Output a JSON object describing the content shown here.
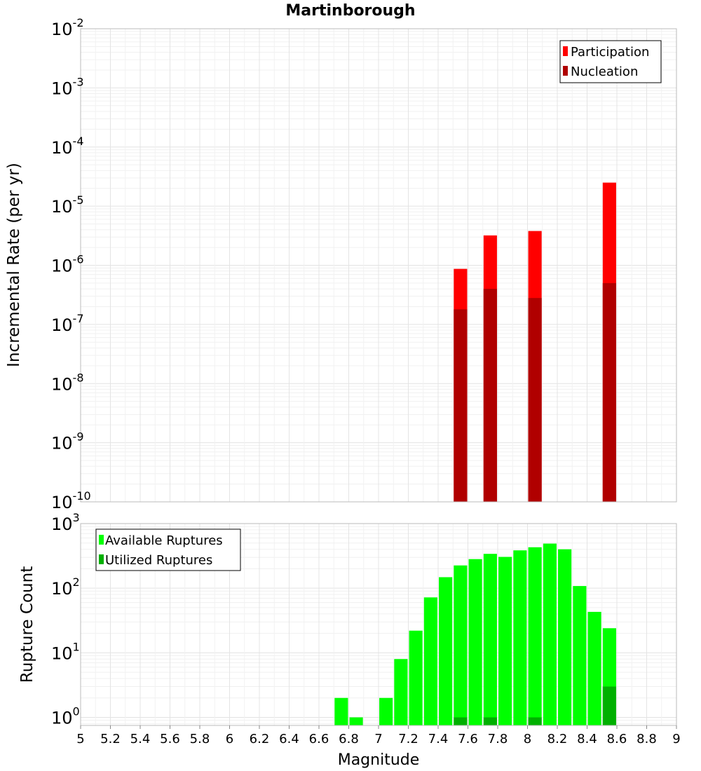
{
  "chart_data": [
    {
      "type": "bar",
      "title": "Martinborough",
      "ylabel": "Incremental Rate (per yr)",
      "xlabel": "",
      "xlim": [
        5,
        9
      ],
      "ylim": [
        1e-10,
        0.01
      ],
      "y_scale": "log",
      "y_tick_exponents": [
        "-10",
        "-9",
        "-8",
        "-7",
        "-6",
        "-5",
        "-4",
        "-3",
        "-2"
      ],
      "grid": true,
      "legend_position": "top-right",
      "series": [
        {
          "name": "Participation",
          "color": "#ff0000",
          "points": [
            [
              7.55,
              8.7e-07
            ],
            [
              7.75,
              3.2e-06
            ],
            [
              8.05,
              3.8e-06
            ],
            [
              8.55,
              2.5e-05
            ]
          ]
        },
        {
          "name": "Nucleation",
          "color": "#b00000",
          "points": [
            [
              7.55,
              1.8e-07
            ],
            [
              7.75,
              4e-07
            ],
            [
              8.05,
              2.8e-07
            ],
            [
              8.55,
              5e-07
            ]
          ]
        }
      ]
    },
    {
      "type": "bar",
      "title": "",
      "ylabel": "Rupture Count",
      "xlabel": "Magnitude",
      "xlim": [
        5,
        9
      ],
      "ylim": [
        0.75,
        1000
      ],
      "y_scale": "log",
      "y_tick_exponents": [
        "0",
        "1",
        "2",
        "3"
      ],
      "x_ticks": [
        "5",
        "5.2",
        "5.4",
        "5.6",
        "5.8",
        "6",
        "6.2",
        "6.4",
        "6.6",
        "6.8",
        "7",
        "7.2",
        "7.4",
        "7.6",
        "7.8",
        "8",
        "8.2",
        "8.4",
        "8.6",
        "8.8",
        "9"
      ],
      "grid": true,
      "legend_position": "top-left",
      "series": [
        {
          "name": "Available Ruptures",
          "color": "#00ff00",
          "points": [
            [
              6.75,
              2
            ],
            [
              6.85,
              1
            ],
            [
              7.05,
              2
            ],
            [
              7.15,
              8
            ],
            [
              7.25,
              22
            ],
            [
              7.35,
              72
            ],
            [
              7.45,
              148
            ],
            [
              7.55,
              225
            ],
            [
              7.65,
              282
            ],
            [
              7.75,
              340
            ],
            [
              7.85,
              305
            ],
            [
              7.95,
              385
            ],
            [
              8.05,
              430
            ],
            [
              8.15,
              490
            ],
            [
              8.25,
              400
            ],
            [
              8.35,
              108
            ],
            [
              8.45,
              43
            ],
            [
              8.55,
              24
            ]
          ]
        },
        {
          "name": "Utilized Ruptures",
          "color": "#00b000",
          "points": [
            [
              7.55,
              1
            ],
            [
              7.75,
              1
            ],
            [
              8.05,
              1
            ],
            [
              8.55,
              3
            ]
          ]
        }
      ]
    }
  ]
}
